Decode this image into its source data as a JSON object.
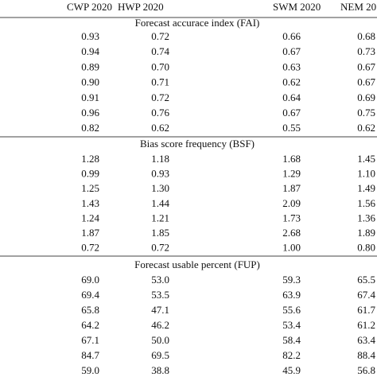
{
  "table": {
    "header": [
      "CWP 2020",
      "HWP 2020",
      "SWM 2020",
      "NEM 20"
    ],
    "sections": [
      {
        "title": "Forecast accurace index (FAI)",
        "rows": [
          [
            "0.93",
            "0.72",
            "0.66",
            "0.68"
          ],
          [
            "0.94",
            "0.74",
            "0.67",
            "0.73"
          ],
          [
            "0.89",
            "0.70",
            "0.63",
            "0.67"
          ],
          [
            "0.90",
            "0.71",
            "0.62",
            "0.67"
          ],
          [
            "0.91",
            "0.72",
            "0.64",
            "0.69"
          ],
          [
            "0.96",
            "0.76",
            "0.67",
            "0.75"
          ],
          [
            "0.82",
            "0.62",
            "0.55",
            "0.62"
          ]
        ]
      },
      {
        "title": "Bias score frequency (BSF)",
        "rows": [
          [
            "1.28",
            "1.18",
            "1.68",
            "1.45"
          ],
          [
            "0.99",
            "0.93",
            "1.29",
            "1.10"
          ],
          [
            "1.25",
            "1.30",
            "1.87",
            "1.49"
          ],
          [
            "1.43",
            "1.44",
            "2.09",
            "1.56"
          ],
          [
            "1.24",
            "1.21",
            "1.73",
            "1.36"
          ],
          [
            "1.87",
            "1.85",
            "2.68",
            "1.89"
          ],
          [
            "0.72",
            "0.72",
            "1.00",
            "0.80"
          ]
        ]
      },
      {
        "title": "Forecast usable percent (FUP)",
        "rows": [
          [
            "69.0",
            "53.0",
            "59.3",
            "65.5"
          ],
          [
            "69.4",
            "53.5",
            "63.9",
            "67.4"
          ],
          [
            "65.8",
            "47.1",
            "55.6",
            "61.7"
          ],
          [
            "64.2",
            "46.2",
            "53.4",
            "61.2"
          ],
          [
            "67.1",
            "50.0",
            "58.4",
            "63.4"
          ],
          [
            "84.7",
            "69.5",
            "82.2",
            "88.4"
          ],
          [
            "59.0",
            "38.8",
            "45.9",
            "56.8"
          ]
        ]
      }
    ]
  }
}
